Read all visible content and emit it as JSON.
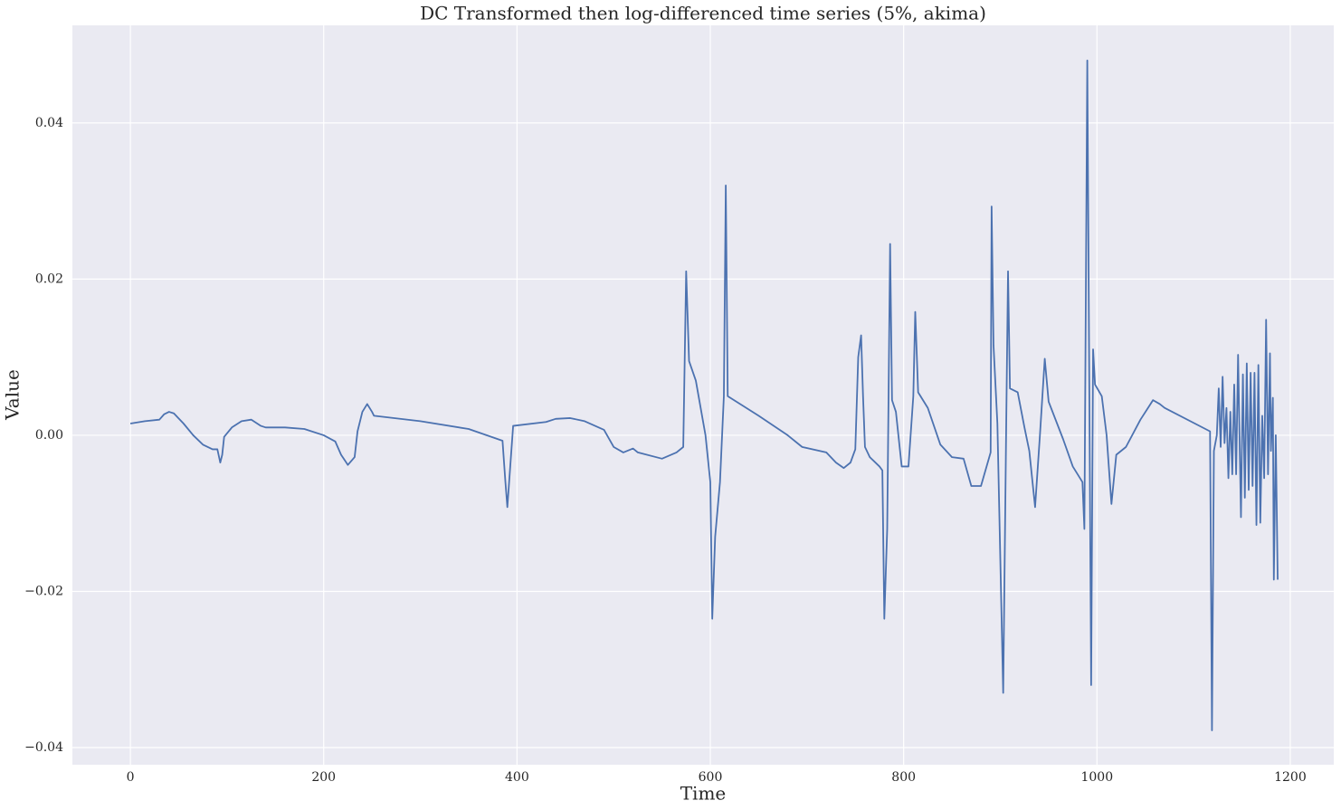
{
  "chart_data": {
    "type": "line",
    "title": "DC Transformed then log-differenced time series (5%, akima)",
    "x_label": "Time",
    "y_label": "Value",
    "xlim": [
      -60,
      1245
    ],
    "ylim": [
      -0.0422,
      0.0525
    ],
    "xticks": [
      0,
      200,
      400,
      600,
      800,
      1000,
      1200
    ],
    "yticks": [
      {
        "value": -0.04,
        "label": "−0.04"
      },
      {
        "value": -0.02,
        "label": "−0.02"
      },
      {
        "value": 0,
        "label": "0.00"
      },
      0.02,
      0.04
    ],
    "grid": true,
    "x": [
      0,
      15,
      30,
      35,
      40,
      45,
      55,
      65,
      75,
      85,
      90,
      93,
      95,
      97,
      105,
      115,
      125,
      135,
      140,
      160,
      180,
      200,
      212,
      218,
      225,
      232,
      235,
      240,
      245,
      250,
      252,
      300,
      350,
      385,
      388,
      390,
      393,
      396,
      430,
      440,
      455,
      470,
      490,
      500,
      510,
      520,
      525,
      550,
      565,
      572,
      575,
      578,
      585,
      595,
      600,
      602,
      605,
      610,
      614,
      616,
      618,
      650,
      680,
      695,
      720,
      730,
      738,
      745,
      750,
      753,
      756,
      758,
      760,
      765,
      775,
      778,
      780,
      783,
      786,
      788,
      792,
      798,
      805,
      810,
      812,
      815,
      825,
      838,
      850,
      862,
      870,
      880,
      890,
      891,
      893,
      897,
      901,
      903,
      906,
      908,
      910,
      918,
      925,
      930,
      936,
      941,
      946,
      950,
      965,
      975,
      985,
      987,
      990,
      994,
      996,
      998,
      1005,
      1010,
      1015,
      1020,
      1030,
      1045,
      1058,
      1065,
      1070,
      1117,
      1119,
      1121,
      1124,
      1126,
      1128,
      1130,
      1132,
      1134,
      1136,
      1138,
      1140,
      1142,
      1144,
      1146,
      1149,
      1151,
      1153,
      1155,
      1157,
      1159,
      1161,
      1163,
      1165,
      1167,
      1169,
      1171,
      1173,
      1175,
      1177,
      1179,
      1180,
      1182,
      1183,
      1185,
      1187
    ],
    "series": [
      {
        "name": "Value",
        "color": "#4c72b0",
        "values": [
          0.0015,
          0.0018,
          0.002,
          0.0027,
          0.003,
          0.0028,
          0.0015,
          0.0,
          -0.0012,
          -0.0018,
          -0.0018,
          -0.0035,
          -0.0025,
          -0.0002,
          0.001,
          0.0018,
          0.002,
          0.0012,
          0.001,
          0.001,
          0.0008,
          0.0,
          -0.0008,
          -0.0025,
          -0.0038,
          -0.0028,
          0.0005,
          0.003,
          0.004,
          0.003,
          0.0025,
          0.0018,
          0.0008,
          -0.0007,
          -0.006,
          -0.0092,
          -0.004,
          0.0012,
          0.0017,
          0.0021,
          0.0022,
          0.0018,
          0.0007,
          -0.0015,
          -0.0022,
          -0.0017,
          -0.0022,
          -0.003,
          -0.0022,
          -0.0015,
          0.021,
          0.0095,
          0.007,
          0.0,
          -0.006,
          -0.0235,
          -0.013,
          -0.006,
          0.005,
          0.032,
          0.005,
          0.0025,
          0.0,
          -0.0015,
          -0.0022,
          -0.0035,
          -0.0042,
          -0.0035,
          -0.0018,
          0.01,
          0.0128,
          0.005,
          -0.0015,
          -0.0028,
          -0.004,
          -0.0045,
          -0.0235,
          -0.012,
          0.0245,
          0.0045,
          0.003,
          -0.004,
          -0.004,
          0.005,
          0.0158,
          0.0055,
          0.0035,
          -0.0012,
          -0.0028,
          -0.003,
          -0.0065,
          -0.0065,
          -0.0022,
          0.0293,
          0.0115,
          0.0015,
          -0.0215,
          -0.033,
          0.0,
          0.021,
          0.006,
          0.0055,
          0.001,
          -0.002,
          -0.0092,
          0.0,
          0.0098,
          0.0043,
          -0.0005,
          -0.004,
          -0.006,
          -0.012,
          0.048,
          -0.032,
          0.011,
          0.0065,
          0.005,
          0.0,
          -0.0088,
          -0.0025,
          -0.0015,
          0.002,
          0.0045,
          0.004,
          0.0035,
          0.0005,
          -0.0378,
          -0.002,
          0.0,
          0.006,
          -0.0015,
          0.0075,
          -0.001,
          0.0035,
          -0.0055,
          0.003,
          -0.005,
          0.0065,
          -0.005,
          0.0103,
          -0.0105,
          0.0078,
          -0.008,
          0.0092,
          -0.007,
          0.008,
          -0.0065,
          0.008,
          -0.0115,
          0.009,
          -0.0112,
          0.0025,
          -0.0055,
          0.0148,
          -0.005,
          0.0105,
          -0.002,
          0.0048,
          -0.0185,
          0.0,
          -0.0185
        ]
      }
    ]
  }
}
